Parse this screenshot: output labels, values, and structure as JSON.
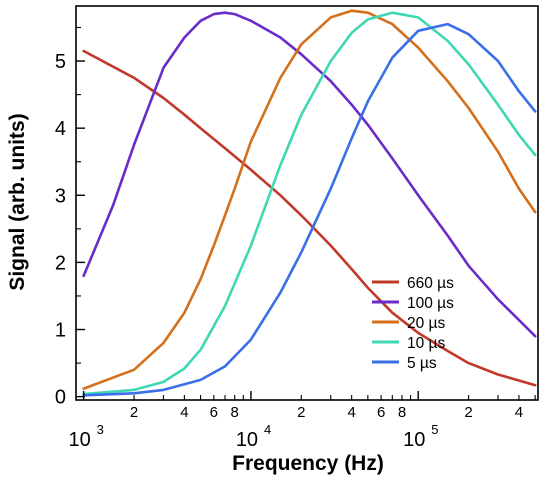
{
  "chart_data": {
    "type": "line",
    "title": "",
    "xlabel": "Frequency (Hz)",
    "ylabel": "Signal (arb. units)",
    "xscale": "log",
    "xlim": [
      900,
      520000
    ],
    "ylim": [
      -0.05,
      5.82
    ],
    "grid": false,
    "legend_position": "bottom-right",
    "x_major_ticks": [
      {
        "value": 1000,
        "base": "10",
        "exp": "3"
      },
      {
        "value": 10000,
        "base": "10",
        "exp": "4"
      },
      {
        "value": 100000,
        "base": "10",
        "exp": "5"
      }
    ],
    "x_minor_ticks": [
      {
        "value": 2000,
        "label": "2"
      },
      {
        "value": 3000,
        "label": ""
      },
      {
        "value": 4000,
        "label": "4"
      },
      {
        "value": 5000,
        "label": ""
      },
      {
        "value": 6000,
        "label": "6"
      },
      {
        "value": 7000,
        "label": ""
      },
      {
        "value": 8000,
        "label": "8"
      },
      {
        "value": 9000,
        "label": ""
      },
      {
        "value": 20000,
        "label": "2"
      },
      {
        "value": 30000,
        "label": ""
      },
      {
        "value": 40000,
        "label": "4"
      },
      {
        "value": 50000,
        "label": ""
      },
      {
        "value": 60000,
        "label": "6"
      },
      {
        "value": 70000,
        "label": ""
      },
      {
        "value": 80000,
        "label": "8"
      },
      {
        "value": 90000,
        "label": ""
      },
      {
        "value": 200000,
        "label": "2"
      },
      {
        "value": 300000,
        "label": ""
      },
      {
        "value": 400000,
        "label": "4"
      },
      {
        "value": 500000,
        "label": ""
      }
    ],
    "y_ticks": [
      {
        "value": 0,
        "label": "0"
      },
      {
        "value": 1,
        "label": "1"
      },
      {
        "value": 2,
        "label": "2"
      },
      {
        "value": 3,
        "label": "3"
      },
      {
        "value": 4,
        "label": "4"
      },
      {
        "value": 5,
        "label": "5"
      }
    ],
    "y_minor_ticks": [
      0.5,
      1.5,
      2.5,
      3.5,
      4.5,
      5.5
    ],
    "series": [
      {
        "name": "660 µs",
        "color": "#c0392b",
        "x": [
          1000,
          2000,
          3000,
          4000,
          5000,
          7000,
          10000,
          15000,
          20000,
          30000,
          40000,
          50000,
          70000,
          100000,
          150000,
          200000,
          300000,
          500000
        ],
        "y": [
          5.15,
          4.75,
          4.45,
          4.2,
          4.0,
          3.7,
          3.38,
          3.0,
          2.7,
          2.25,
          1.9,
          1.62,
          1.25,
          0.95,
          0.68,
          0.5,
          0.33,
          0.17
        ]
      },
      {
        "name": "100 µs",
        "color": "#6a2bc9",
        "x": [
          1000,
          1500,
          2000,
          3000,
          4000,
          5000,
          6000,
          7000,
          8000,
          10000,
          15000,
          20000,
          30000,
          40000,
          50000,
          70000,
          100000,
          150000,
          200000,
          300000,
          500000
        ],
        "y": [
          1.8,
          2.85,
          3.75,
          4.9,
          5.35,
          5.6,
          5.7,
          5.72,
          5.7,
          5.6,
          5.35,
          5.1,
          4.7,
          4.35,
          4.05,
          3.55,
          3.0,
          2.4,
          1.95,
          1.45,
          0.9
        ]
      },
      {
        "name": "20  µs",
        "color": "#d4701c",
        "x": [
          1000,
          2000,
          3000,
          4000,
          5000,
          6000,
          7000,
          8000,
          10000,
          15000,
          20000,
          30000,
          40000,
          50000,
          70000,
          100000,
          150000,
          200000,
          300000,
          400000,
          500000
        ],
        "y": [
          0.12,
          0.4,
          0.8,
          1.25,
          1.75,
          2.25,
          2.7,
          3.1,
          3.8,
          4.75,
          5.25,
          5.65,
          5.75,
          5.72,
          5.55,
          5.2,
          4.7,
          4.3,
          3.65,
          3.1,
          2.75
        ]
      },
      {
        "name": "10  µs",
        "color": "#3fd8b2",
        "x": [
          1000,
          2000,
          3000,
          4000,
          5000,
          7000,
          10000,
          15000,
          20000,
          30000,
          40000,
          50000,
          70000,
          100000,
          150000,
          200000,
          300000,
          400000,
          500000
        ],
        "y": [
          0.04,
          0.1,
          0.22,
          0.42,
          0.7,
          1.35,
          2.25,
          3.45,
          4.2,
          5.0,
          5.42,
          5.62,
          5.72,
          5.65,
          5.3,
          4.95,
          4.35,
          3.9,
          3.6
        ]
      },
      {
        "name": "5   µs",
        "color": "#3a6fe8",
        "x": [
          1000,
          2000,
          3000,
          5000,
          7000,
          10000,
          15000,
          20000,
          30000,
          40000,
          50000,
          70000,
          100000,
          150000,
          200000,
          300000,
          400000,
          500000
        ],
        "y": [
          0.02,
          0.05,
          0.1,
          0.25,
          0.45,
          0.85,
          1.55,
          2.15,
          3.1,
          3.85,
          4.4,
          5.05,
          5.45,
          5.55,
          5.4,
          5.0,
          4.55,
          4.25
        ]
      }
    ]
  }
}
